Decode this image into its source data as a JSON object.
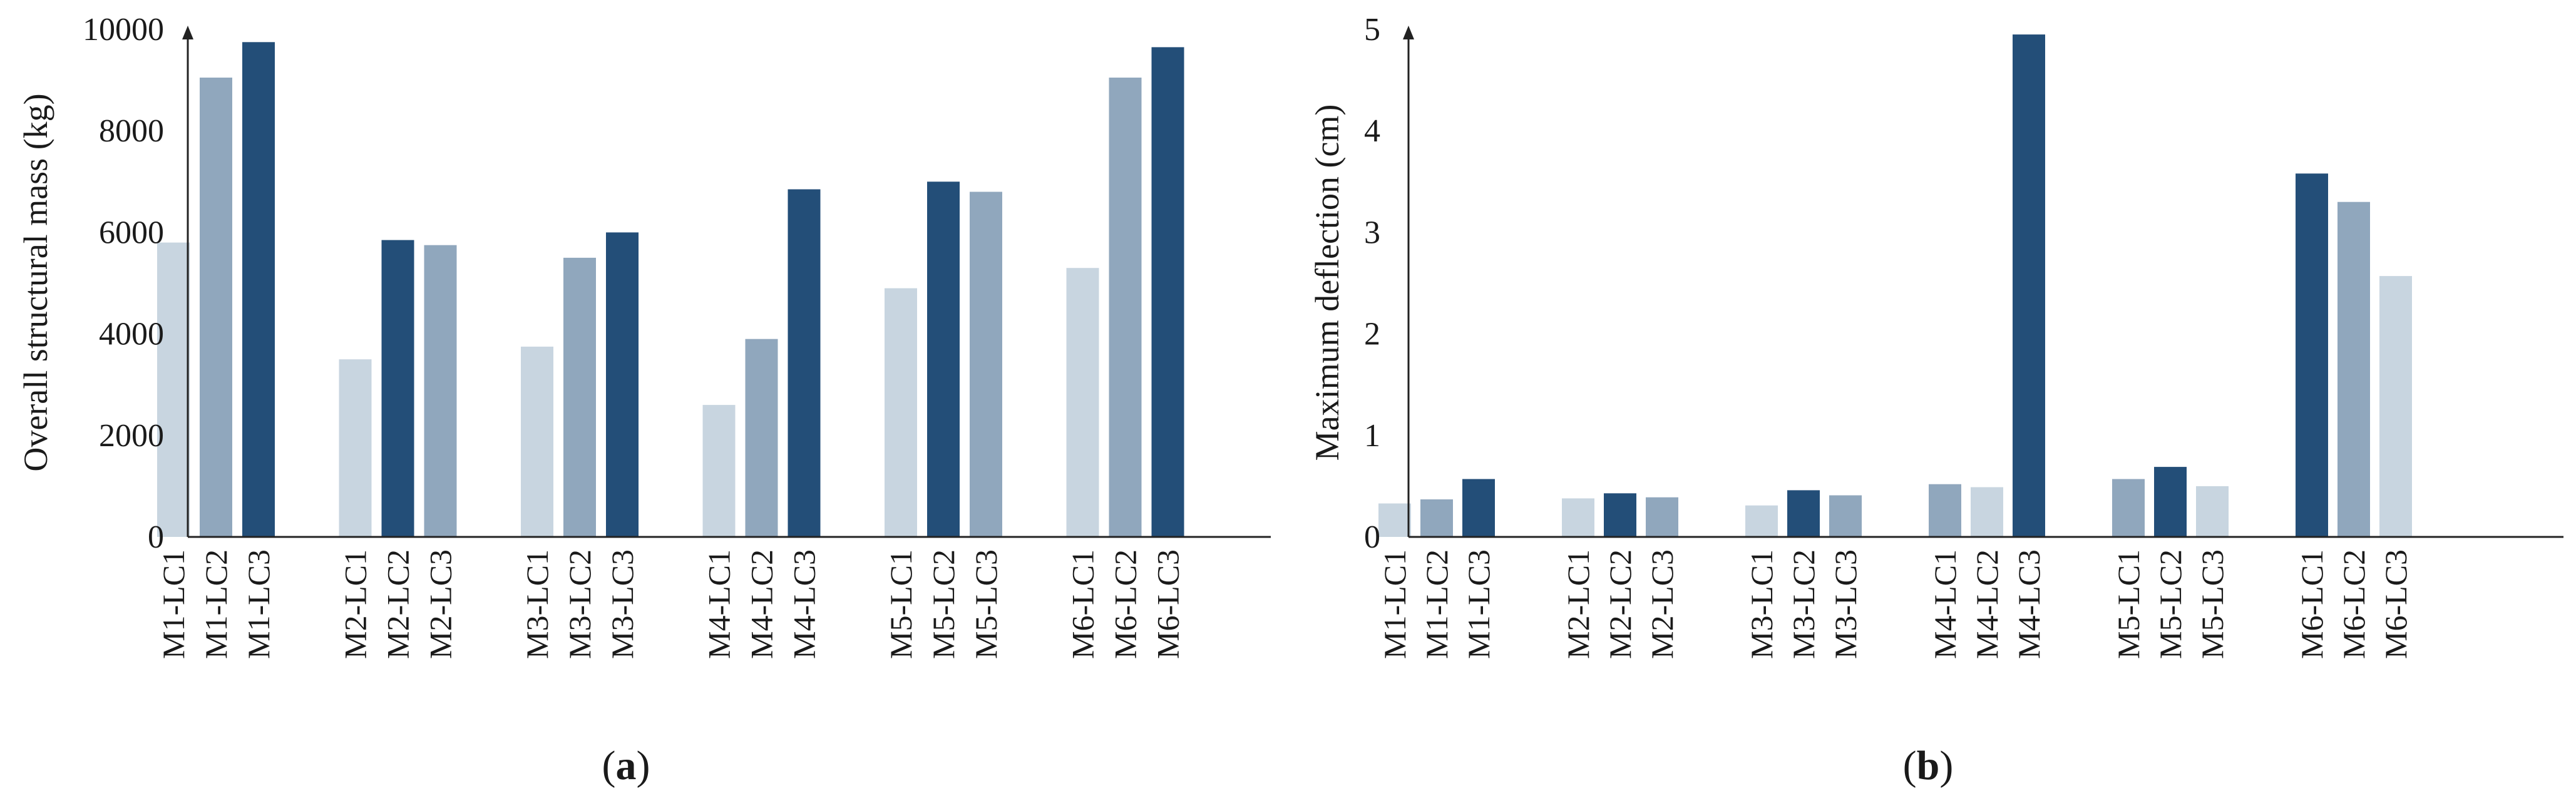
{
  "panels": [
    {
      "caption_open": "(",
      "caption_letter": "a",
      "caption_close": ")"
    },
    {
      "caption_open": "(",
      "caption_letter": "b",
      "caption_close": ")"
    }
  ],
  "chart_data": [
    {
      "type": "bar",
      "title": "",
      "xlabel": "",
      "ylabel": "Overall structural mass (kg)",
      "ylim": [
        0,
        10000
      ],
      "yticks": [
        0,
        2000,
        4000,
        6000,
        8000,
        10000
      ],
      "grid": false,
      "legend": "none",
      "colors": {
        "light": "#c8d5e0",
        "medium": "#90a7bd",
        "dark": "#234e78"
      },
      "categories": [
        "M1-LC1",
        "M1-LC2",
        "M1-LC3",
        "M2-LC1",
        "M2-LC2",
        "M2-LC3",
        "M3-LC1",
        "M3-LC2",
        "M3-LC3",
        "M4-LC1",
        "M4-LC2",
        "M4-LC3",
        "M5-LC1",
        "M5-LC2",
        "M5-LC3",
        "M6-LC1",
        "M6-LC2",
        "M6-LC3"
      ],
      "values": [
        5800,
        9050,
        9750,
        3500,
        5850,
        5750,
        3750,
        5500,
        6000,
        2600,
        3900,
        6850,
        4900,
        7000,
        6800,
        5300,
        9050,
        9650
      ],
      "bar_shades": [
        "light",
        "medium",
        "dark",
        "light",
        "dark",
        "medium",
        "light",
        "medium",
        "dark",
        "light",
        "medium",
        "dark",
        "light",
        "dark",
        "medium",
        "light",
        "medium",
        "dark"
      ]
    },
    {
      "type": "bar",
      "title": "",
      "xlabel": "",
      "ylabel": "Maximum deflection (cm)",
      "ylim": [
        0,
        5
      ],
      "yticks": [
        0,
        1,
        2,
        3,
        4,
        5
      ],
      "grid": false,
      "legend": "none",
      "colors": {
        "light": "#c8d5e0",
        "medium": "#90a7bd",
        "dark": "#234e78"
      },
      "categories": [
        "M1-LC1",
        "M1-LC2",
        "M1-LC3",
        "M2-LC1",
        "M2-LC2",
        "M2-LC3",
        "M3-LC1",
        "M3-LC2",
        "M3-LC3",
        "M4-LC1",
        "M4-LC2",
        "M4-LC3",
        "M5-LC1",
        "M5-LC2",
        "M5-LC3",
        "M6-LC1",
        "M6-LC2",
        "M6-LC3"
      ],
      "values": [
        0.33,
        0.37,
        0.57,
        0.38,
        0.43,
        0.39,
        0.31,
        0.46,
        0.41,
        0.52,
        0.49,
        4.95,
        0.57,
        0.69,
        0.5,
        3.58,
        3.3,
        2.57
      ],
      "bar_shades": [
        "light",
        "medium",
        "dark",
        "light",
        "dark",
        "medium",
        "light",
        "dark",
        "medium",
        "medium",
        "light",
        "dark",
        "medium",
        "dark",
        "light",
        "dark",
        "medium",
        "light"
      ]
    }
  ]
}
